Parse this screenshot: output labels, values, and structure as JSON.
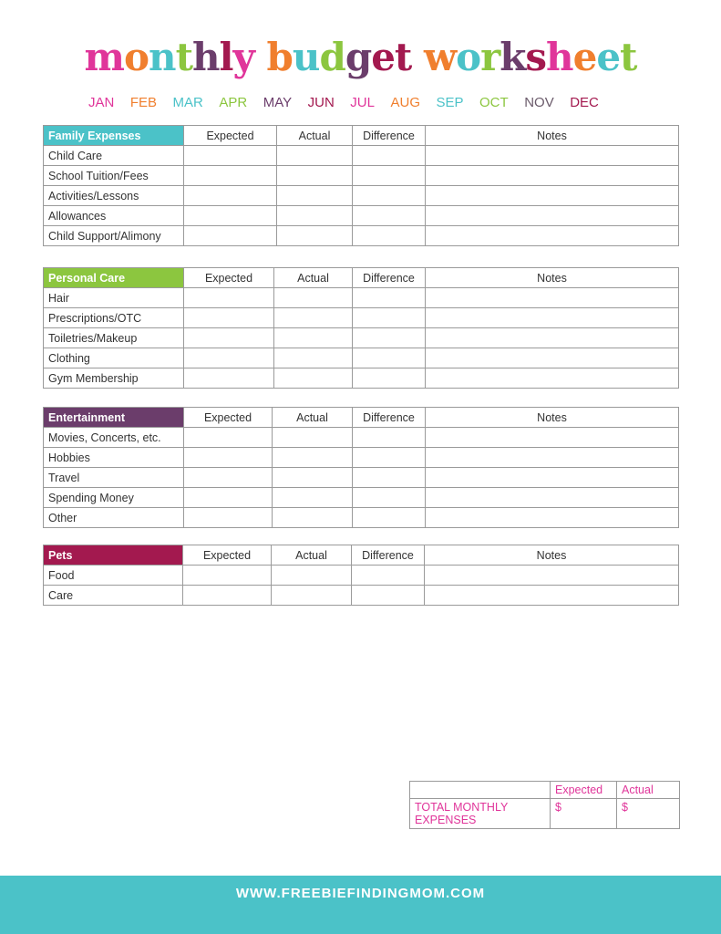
{
  "title": {
    "letters": [
      [
        "m",
        "#e0359a"
      ],
      [
        "o",
        "#f07f2e"
      ],
      [
        "n",
        "#4bc2c8"
      ],
      [
        "t",
        "#8cc63f"
      ],
      [
        "h",
        "#6b3d6b"
      ],
      [
        "l",
        "#a3194f"
      ],
      [
        "y",
        "#e0359a"
      ],
      [
        " ",
        "#fff"
      ],
      [
        "b",
        "#f07f2e"
      ],
      [
        "u",
        "#4bc2c8"
      ],
      [
        "d",
        "#8cc63f"
      ],
      [
        "g",
        "#6b3d6b"
      ],
      [
        "e",
        "#a3194f"
      ],
      [
        "t",
        "#a3194f"
      ],
      [
        " ",
        "#fff"
      ],
      [
        "w",
        "#f07f2e"
      ],
      [
        "o",
        "#4bc2c8"
      ],
      [
        "r",
        "#8cc63f"
      ],
      [
        "k",
        "#6b3d6b"
      ],
      [
        "s",
        "#a3194f"
      ],
      [
        "h",
        "#e0359a"
      ],
      [
        "e",
        "#f07f2e"
      ],
      [
        "e",
        "#4bc2c8"
      ],
      [
        "t",
        "#8cc63f"
      ]
    ],
    "text": "monthly budget worksheet"
  },
  "months": [
    {
      "label": "JAN",
      "color": "#e0359a"
    },
    {
      "label": "FEB",
      "color": "#f07f2e"
    },
    {
      "label": "MAR",
      "color": "#4bc2c8"
    },
    {
      "label": "APR",
      "color": "#8cc63f"
    },
    {
      "label": "MAY",
      "color": "#6b3d6b"
    },
    {
      "label": "JUN",
      "color": "#a3194f"
    },
    {
      "label": "JUL",
      "color": "#e0359a"
    },
    {
      "label": "AUG",
      "color": "#f07f2e"
    },
    {
      "label": "SEP",
      "color": "#4bc2c8"
    },
    {
      "label": "OCT",
      "color": "#8cc63f"
    },
    {
      "label": "NOV",
      "color": "#6b5b6b"
    },
    {
      "label": "DEC",
      "color": "#a3194f"
    }
  ],
  "columns": [
    "Expected",
    "Actual",
    "Difference",
    "Notes"
  ],
  "sections": [
    {
      "title": "Family Expenses",
      "color": "#4bc2c8",
      "rows": [
        "Child Care",
        "School Tuition/Fees",
        "Activities/Lessons",
        "Allowances",
        "Child Support/Alimony"
      ]
    },
    {
      "title": "Personal Care",
      "color": "#8cc63f",
      "rows": [
        "Hair",
        "Prescriptions/OTC",
        "Toiletries/Makeup",
        "Clothing",
        "Gym Membership"
      ]
    },
    {
      "title": "Entertainment",
      "color": "#6b3d6b",
      "rows": [
        "Movies, Concerts, etc.",
        "Hobbies",
        "Travel",
        "Spending Money",
        "Other"
      ]
    },
    {
      "title": "Pets",
      "color": "#a3194f",
      "rows": [
        "Food",
        "Care"
      ]
    }
  ],
  "total": {
    "expected": "Expected",
    "actual": "Actual",
    "label": "TOTAL MONTHLY EXPENSES",
    "expected_value": "$",
    "actual_value": "$"
  },
  "footer": "WWW.FREEBIEFINDINGMOM.COM"
}
